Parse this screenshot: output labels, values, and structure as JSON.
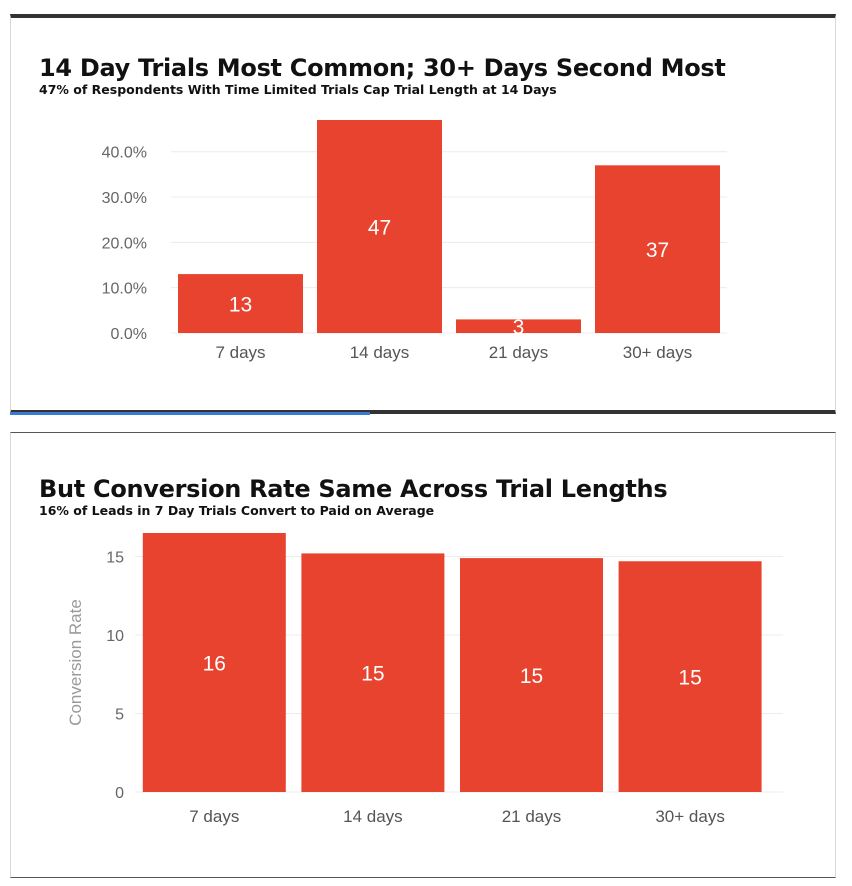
{
  "chart_data": [
    {
      "type": "bar",
      "title": "14 Day Trials Most Common; 30+ Days Second Most",
      "subtitle": "47% of Respondents With Time Limited Trials Cap Trial Length at 14 Days",
      "xlabel": "",
      "ylabel": "",
      "categories": [
        "7 days",
        "14 days",
        "21 days",
        "30+ days"
      ],
      "values": [
        13,
        47,
        3,
        37
      ],
      "data_labels": [
        "13",
        "47",
        "3",
        "37"
      ],
      "ylim": [
        0,
        47
      ],
      "yticks": [
        0,
        10,
        20,
        30,
        40
      ],
      "ytick_labels": [
        "0.0%",
        "10.0%",
        "20.0%",
        "30.0%",
        "40.0%"
      ],
      "bar_color": "#e8432f",
      "grid": true,
      "legend": "none"
    },
    {
      "type": "bar",
      "title": "But Conversion Rate Same Across Trial Lengths",
      "subtitle": "16% of Leads in 7 Day Trials Convert to Paid on Average",
      "xlabel": "",
      "ylabel": "Conversion Rate",
      "categories": [
        "7 days",
        "14 days",
        "21 days",
        "30+ days"
      ],
      "values": [
        16.5,
        15.2,
        14.9,
        14.7
      ],
      "data_labels": [
        "16",
        "15",
        "15",
        "15"
      ],
      "ylim": [
        0,
        16.5
      ],
      "yticks": [
        0,
        5,
        10,
        15
      ],
      "ytick_labels": [
        "0",
        "5",
        "10",
        "15"
      ],
      "bar_color": "#e8432f",
      "grid": true,
      "legend": "none"
    }
  ]
}
